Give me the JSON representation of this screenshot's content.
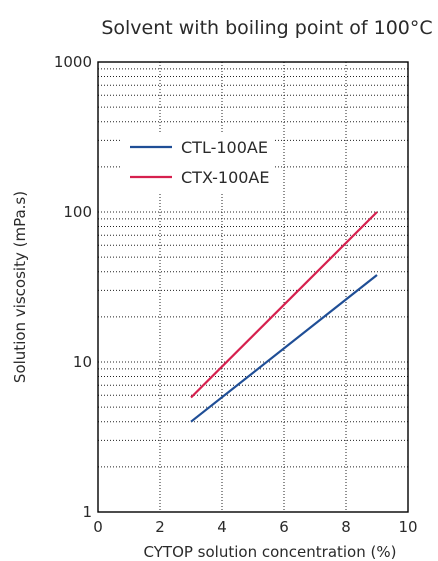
{
  "chart_data": {
    "type": "line",
    "title": "Solvent with boiling point of 100°C",
    "xlabel": "CYTOP solution concentration (%)",
    "ylabel": "Solution viscosity (mPa.s)",
    "xlim": [
      0,
      10
    ],
    "ylim": [
      1,
      1000
    ],
    "yscale": "log",
    "x_ticks": [
      0,
      2,
      4,
      6,
      8,
      10
    ],
    "x_tick_labels": [
      "0",
      "2",
      "4",
      "6",
      "8",
      "10"
    ],
    "y_ticks": [
      1,
      10,
      100,
      1000
    ],
    "y_tick_labels": [
      "1",
      "10",
      "100",
      "1000"
    ],
    "grid": true,
    "legend": "upper-left",
    "series": [
      {
        "name": "CTL-100AE",
        "color": "#1f4e96",
        "x": [
          3,
          9
        ],
        "y": [
          4,
          38
        ]
      },
      {
        "name": "CTX-100AE",
        "color": "#d6204e",
        "x": [
          3,
          9
        ],
        "y": [
          5.8,
          100
        ]
      }
    ]
  }
}
